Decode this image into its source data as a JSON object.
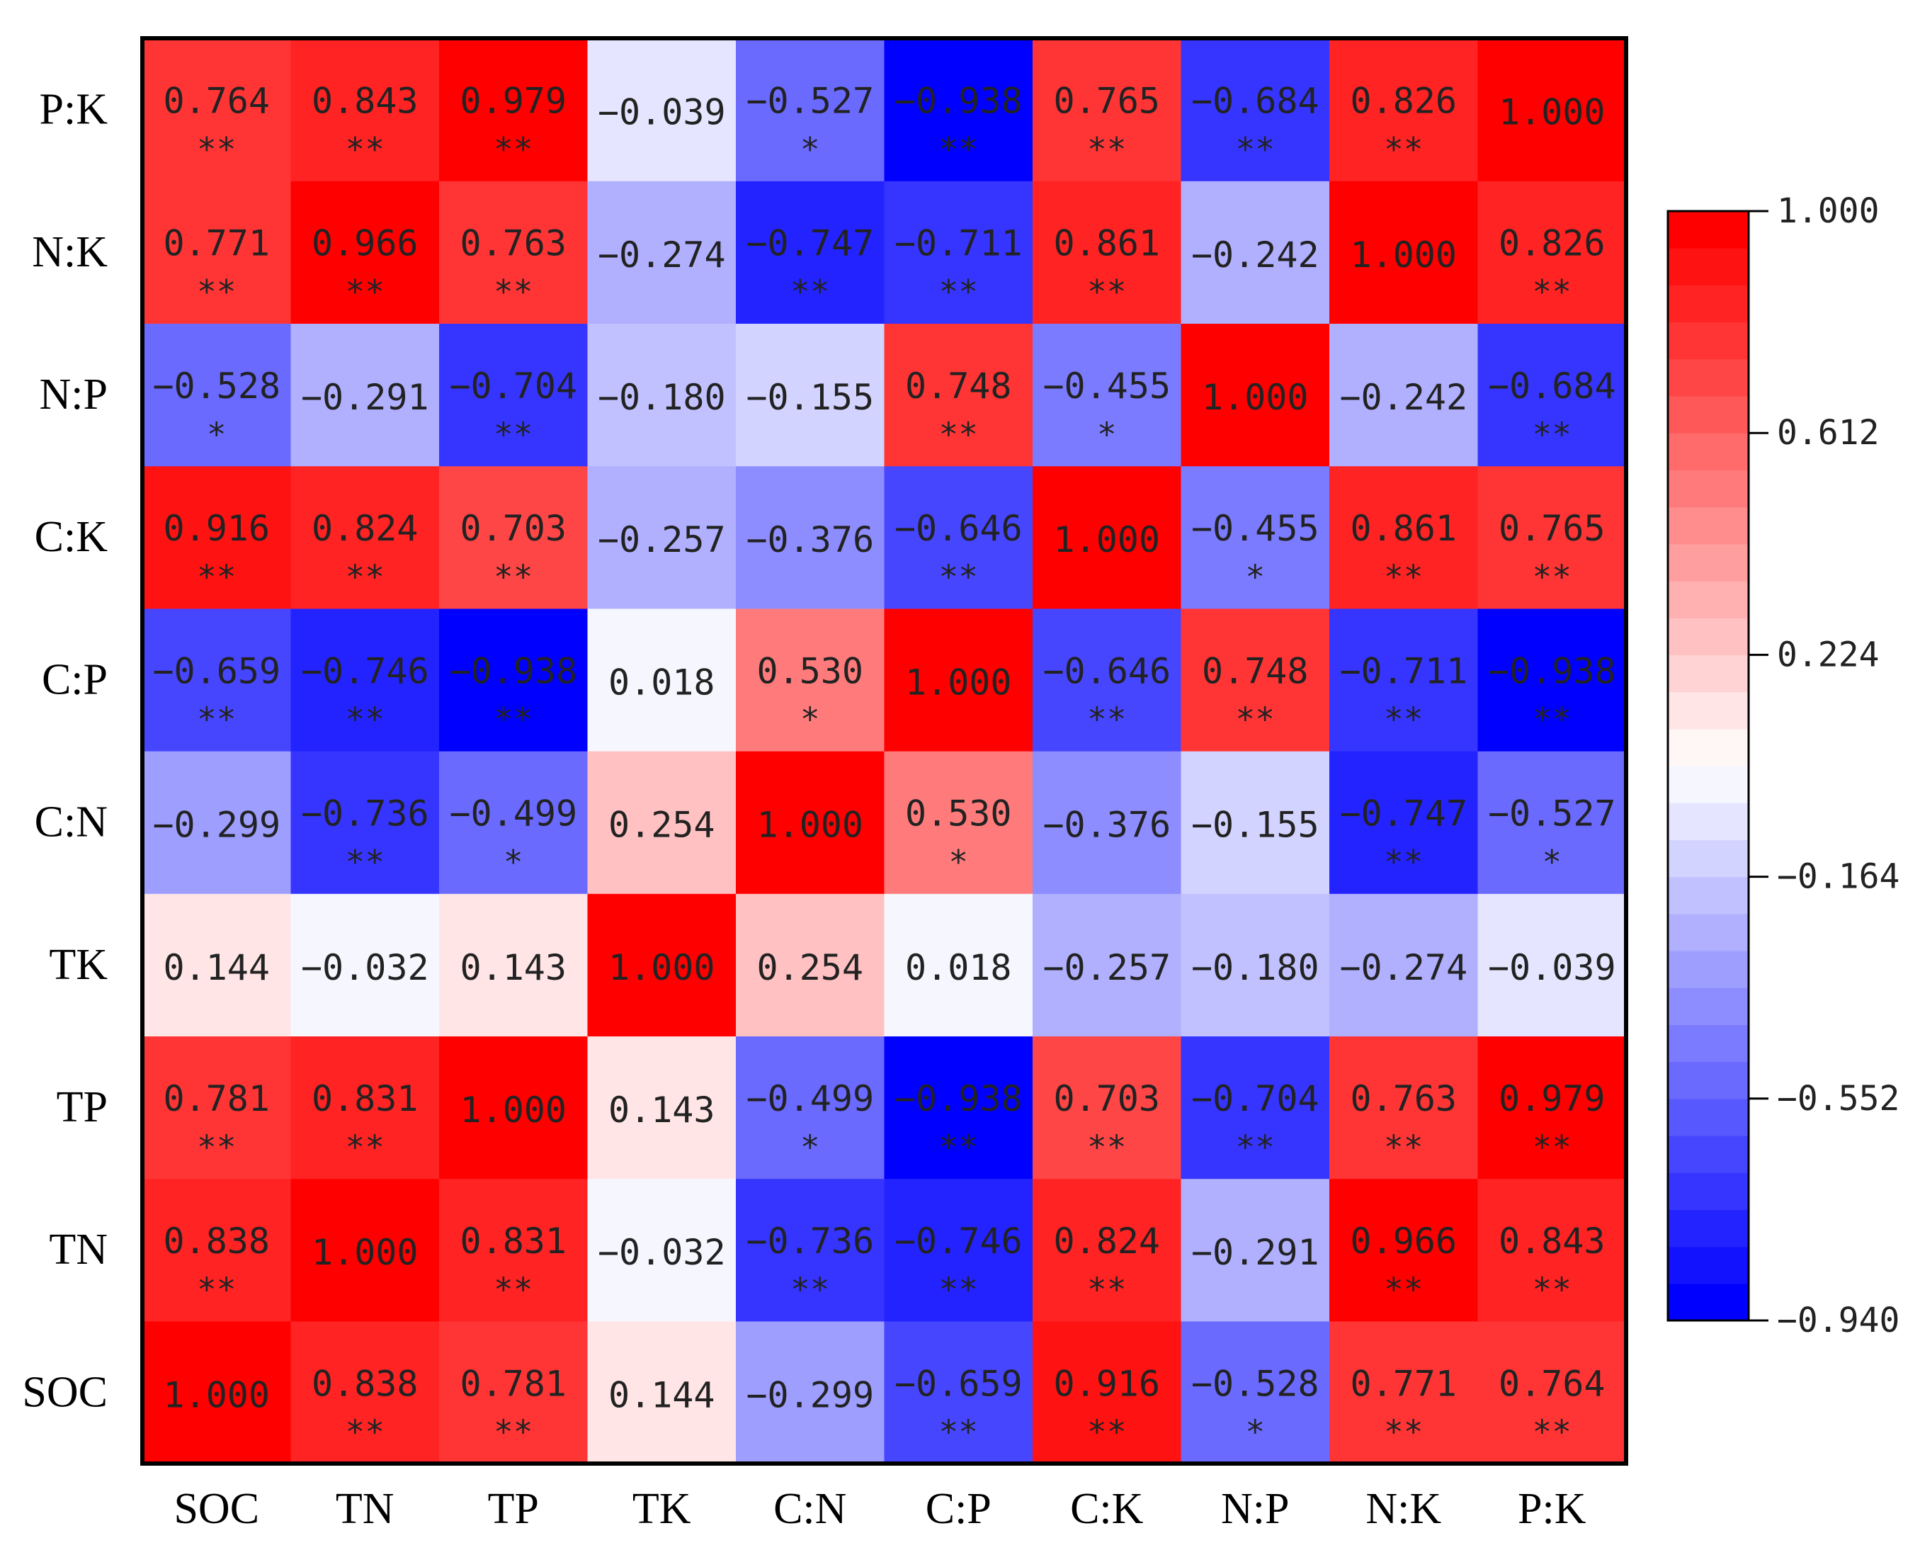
{
  "chart_data": {
    "type": "heatmap",
    "x_labels": [
      "SOC",
      "TN",
      "TP",
      "TK",
      "C:N",
      "C:P",
      "C:K",
      "N:P",
      "N:K",
      "P:K"
    ],
    "y_labels_bottom_to_top": [
      "SOC",
      "TN",
      "TP",
      "TK",
      "C:N",
      "C:P",
      "C:K",
      "N:P",
      "N:K",
      "P:K"
    ],
    "matrix": [
      [
        1.0,
        0.838,
        0.781,
        0.144,
        -0.299,
        -0.659,
        0.916,
        -0.528,
        0.771,
        0.764
      ],
      [
        0.838,
        1.0,
        0.831,
        -0.032,
        -0.736,
        -0.746,
        0.824,
        -0.291,
        0.966,
        0.843
      ],
      [
        0.781,
        0.831,
        1.0,
        0.143,
        -0.499,
        -0.938,
        0.703,
        -0.704,
        0.763,
        0.979
      ],
      [
        0.144,
        -0.032,
        0.143,
        1.0,
        0.254,
        0.018,
        -0.257,
        -0.18,
        -0.274,
        -0.039
      ],
      [
        -0.299,
        -0.736,
        -0.499,
        0.254,
        1.0,
        0.53,
        -0.376,
        -0.155,
        -0.747,
        -0.527
      ],
      [
        -0.659,
        -0.746,
        -0.938,
        0.018,
        0.53,
        1.0,
        -0.646,
        0.748,
        -0.711,
        -0.938
      ],
      [
        0.916,
        0.824,
        0.703,
        -0.257,
        -0.376,
        -0.646,
        1.0,
        -0.455,
        0.861,
        0.765
      ],
      [
        -0.528,
        -0.291,
        -0.704,
        -0.18,
        -0.155,
        0.748,
        -0.455,
        1.0,
        -0.242,
        -0.684
      ],
      [
        0.771,
        0.966,
        0.763,
        -0.274,
        -0.747,
        -0.711,
        0.861,
        -0.242,
        1.0,
        0.826
      ],
      [
        0.764,
        0.843,
        0.979,
        -0.039,
        -0.527,
        -0.938,
        0.765,
        -0.684,
        0.826,
        1.0
      ]
    ],
    "significance": [
      [
        "",
        "**",
        "**",
        "",
        "",
        "**",
        "**",
        "*",
        "**",
        "**"
      ],
      [
        "**",
        "",
        "**",
        "",
        "**",
        "**",
        "**",
        "",
        "**",
        "**"
      ],
      [
        "**",
        "**",
        "",
        "",
        "*",
        "**",
        "**",
        "**",
        "**",
        "**"
      ],
      [
        "",
        "",
        "",
        "",
        "",
        "",
        "",
        "",
        "",
        ""
      ],
      [
        "",
        "**",
        "*",
        "",
        "",
        "*",
        "",
        "",
        "**",
        "*"
      ],
      [
        "**",
        "**",
        "**",
        "",
        "*",
        "",
        "**",
        "**",
        "**",
        "**"
      ],
      [
        "**",
        "**",
        "**",
        "",
        "",
        "**",
        "",
        "*",
        "**",
        "**"
      ],
      [
        "*",
        "",
        "**",
        "",
        "",
        "**",
        "*",
        "",
        "",
        "**"
      ],
      [
        "**",
        "**",
        "**",
        "",
        "**",
        "**",
        "**",
        "",
        "",
        "**"
      ],
      [
        "**",
        "**",
        "**",
        "",
        "*",
        "**",
        "**",
        "**",
        "**",
        ""
      ]
    ],
    "colorbar": {
      "range": [
        -0.94,
        1.0
      ],
      "ticks": [
        "1.000",
        "0.612",
        "0.224",
        "−0.164",
        "−0.552",
        "−0.940"
      ],
      "tick_values": [
        1.0,
        0.612,
        0.224,
        -0.164,
        -0.552,
        -0.94
      ],
      "steps": 30,
      "neg_color": "#0000ff",
      "mid_color": "#ffffff",
      "pos_color": "#ff0000"
    }
  }
}
